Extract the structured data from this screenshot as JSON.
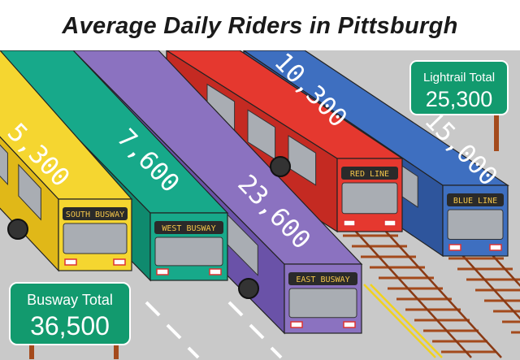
{
  "title": "Average Daily Riders in Pittsburgh",
  "chart_data": {
    "type": "bar",
    "title": "Average Daily Riders in Pittsburgh",
    "categories": [
      "South Busway",
      "West Busway",
      "East Busway",
      "Red Line",
      "Blue Line"
    ],
    "values": [
      5300,
      7600,
      23600,
      10300,
      15000
    ],
    "value_labels": [
      "5,300",
      "7,600",
      "23,600",
      "10,300",
      "15,000"
    ],
    "sign_labels": [
      "SOUTH BUSWAY",
      "WEST BUSWAY",
      "EAST BUSWAY",
      "RED LINE",
      "BLUE LINE"
    ],
    "groups": [
      {
        "label": "Busway Total",
        "total": "36,500",
        "members": [
          "South Busway",
          "West Busway",
          "East Busway"
        ]
      },
      {
        "label": "Lightrail Total",
        "total": "25,300",
        "members": [
          "Red Line",
          "Blue Line"
        ]
      }
    ],
    "colors": {
      "South Busway": "#f5d630",
      "West Busway": "#17a98a",
      "East Busway": "#8b72c0",
      "Red Line": "#e5382f",
      "Blue Line": "#3e6fc0",
      "sign": "#129a6e",
      "ground": "#c9c9c9"
    }
  }
}
